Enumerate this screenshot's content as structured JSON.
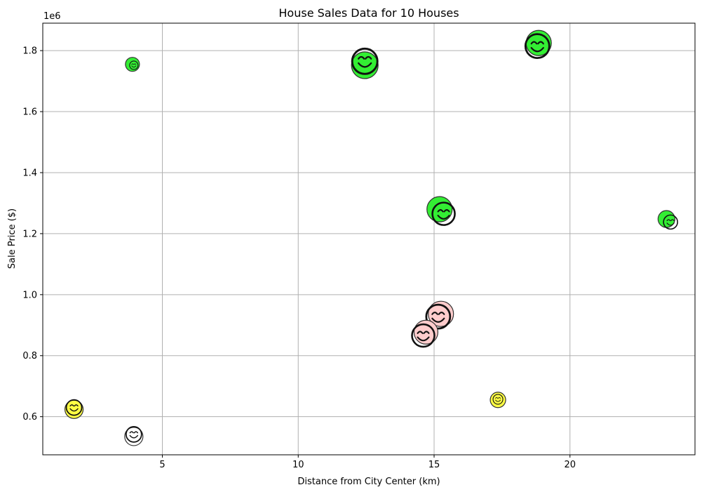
{
  "chart_data": {
    "type": "scatter",
    "title": "House Sales Data for 10 Houses",
    "xlabel": "Distance from City Center (km)",
    "ylabel": "Sale Price ($)",
    "y_offset_label": "1e6",
    "xlim": [
      0.6,
      24.6
    ],
    "ylim": [
      475000,
      1890000
    ],
    "xticks": [
      5,
      10,
      15,
      20
    ],
    "xtick_labels": [
      "5",
      "10",
      "15",
      "20"
    ],
    "yticks": [
      600000,
      800000,
      1000000,
      1200000,
      1400000,
      1600000,
      1800000
    ],
    "ytick_labels": [
      "0.6",
      "0.8",
      "1.0",
      "1.2",
      "1.4",
      "1.6",
      "1.8"
    ],
    "grid": true,
    "colors": {
      "green": "#33ee33",
      "pink": "#ffcccc",
      "yellow": "#ffff44",
      "white": "#ffffff"
    },
    "points": [
      {
        "x": 3.9,
        "y": 1755000,
        "color": "green",
        "size": 10,
        "face_x": 3.95,
        "face_y": 1752000,
        "face_size": 6
      },
      {
        "x": 12.45,
        "y": 1752000,
        "color": "green",
        "size": 19,
        "face_x": 12.45,
        "face_y": 1765000,
        "face_size": 18
      },
      {
        "x": 18.85,
        "y": 1825000,
        "color": "green",
        "size": 18,
        "face_x": 18.8,
        "face_y": 1815000,
        "face_size": 17
      },
      {
        "x": 15.2,
        "y": 1280000,
        "color": "green",
        "size": 18,
        "face_x": 15.35,
        "face_y": 1265000,
        "face_size": 16
      },
      {
        "x": 23.55,
        "y": 1248000,
        "color": "green",
        "size": 12,
        "face_x": 23.7,
        "face_y": 1238000,
        "face_size": 10
      },
      {
        "x": 15.25,
        "y": 937000,
        "color": "pink",
        "size": 18,
        "face_x": 15.15,
        "face_y": 928000,
        "face_size": 17
      },
      {
        "x": 14.7,
        "y": 877000,
        "color": "pink",
        "size": 17,
        "face_x": 14.6,
        "face_y": 866000,
        "face_size": 16
      },
      {
        "x": 1.75,
        "y": 624000,
        "color": "yellow",
        "size": 13,
        "face_x": 1.75,
        "face_y": 630000,
        "face_size": 11
      },
      {
        "x": 17.35,
        "y": 655000,
        "color": "yellow",
        "size": 11,
        "face_x": 17.35,
        "face_y": 657000,
        "face_size": 7
      },
      {
        "x": 3.95,
        "y": 535000,
        "color": "white",
        "size": 13,
        "face_x": 3.95,
        "face_y": 542000,
        "face_size": 11
      }
    ]
  }
}
